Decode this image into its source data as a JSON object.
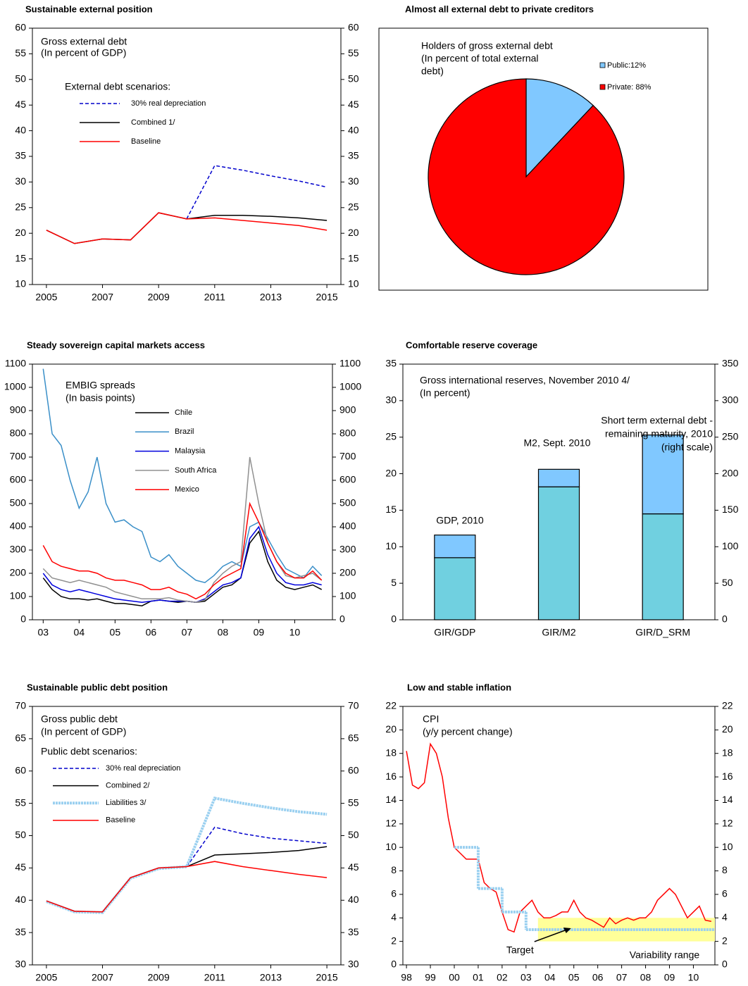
{
  "chart_data": [
    {
      "type": "line",
      "title": "Sustainable external position",
      "text": [
        "Gross external debt",
        "(In percent of GDP)"
      ],
      "legend_title": "External debt  scenarios:",
      "x": [
        2005,
        2006,
        2007,
        2008,
        2009,
        2010,
        2011,
        2012,
        2013,
        2014,
        2015
      ],
      "xlim": [
        2004.5,
        2015.5
      ],
      "xticks": [
        2005,
        2007,
        2009,
        2011,
        2013,
        2015
      ],
      "ylim": [
        10,
        60
      ],
      "yticks": [
        10,
        15,
        20,
        25,
        30,
        35,
        40,
        45,
        50,
        55,
        60
      ],
      "y2lim": [
        10,
        60
      ],
      "y2ticks": [
        10,
        15,
        20,
        25,
        30,
        35,
        40,
        45,
        50,
        55,
        60
      ],
      "series": [
        {
          "name": "30% real depreciation",
          "color": "#0000cc",
          "style": "dashed",
          "values": [
            null,
            null,
            null,
            null,
            null,
            22.8,
            33.2,
            32.3,
            31.2,
            30.2,
            29.0
          ]
        },
        {
          "name": "Combined 1/",
          "color": "#000000",
          "style": "solid",
          "values": [
            20.6,
            18.0,
            18.9,
            18.7,
            24.0,
            22.8,
            23.5,
            23.5,
            23.3,
            23.0,
            22.5
          ]
        },
        {
          "name": "Baseline",
          "color": "#ff0000",
          "style": "solid",
          "values": [
            20.6,
            18.0,
            18.9,
            18.7,
            24.0,
            22.8,
            23.0,
            22.5,
            22.0,
            21.5,
            20.6
          ]
        }
      ]
    },
    {
      "type": "pie",
      "title": "Almost all external  debt to private creditors",
      "text": [
        "Holders of gross external debt",
        "(In percent of total external",
        "debt)"
      ],
      "values": [
        12,
        88
      ],
      "value_labels": [
        "Public:12%",
        "Private: 88%"
      ],
      "colors": [
        "#80c8ff",
        "#ff0000"
      ]
    },
    {
      "type": "line",
      "title": "Steady sovereign capital markets access",
      "text": [
        "EMBIG spreads",
        "(In basis points)"
      ],
      "x": [
        2003,
        2003.25,
        2003.5,
        2003.75,
        2004,
        2004.25,
        2004.5,
        2004.75,
        2005,
        2005.25,
        2005.5,
        2005.75,
        2006,
        2006.25,
        2006.5,
        2006.75,
        2007,
        2007.25,
        2007.5,
        2007.75,
        2008,
        2008.25,
        2008.5,
        2008.75,
        2009,
        2009.25,
        2009.5,
        2009.75,
        2010,
        2010.25,
        2010.5,
        2010.75
      ],
      "xlim": [
        2002.7,
        2011.05
      ],
      "xticks": [
        {
          "value": 2003,
          "label": "03"
        },
        {
          "value": 2004,
          "label": "04"
        },
        {
          "value": 2005,
          "label": "05"
        },
        {
          "value": 2006,
          "label": "06"
        },
        {
          "value": 2007,
          "label": "07"
        },
        {
          "value": 2008,
          "label": "08"
        },
        {
          "value": 2009,
          "label": "09"
        },
        {
          "value": 2010,
          "label": "10"
        }
      ],
      "ylim": [
        0,
        1100
      ],
      "yticks": [
        0,
        100,
        200,
        300,
        400,
        500,
        600,
        700,
        800,
        900,
        1000,
        1100
      ],
      "y2lim": [
        0,
        1100
      ],
      "y2ticks": [
        0,
        100,
        200,
        300,
        400,
        500,
        600,
        700,
        800,
        900,
        1000,
        1100
      ],
      "series": [
        {
          "name": "Chile",
          "color": "#000000",
          "style": "solid",
          "values": [
            180,
            130,
            100,
            90,
            90,
            85,
            90,
            80,
            70,
            70,
            65,
            60,
            80,
            85,
            80,
            75,
            80,
            75,
            80,
            110,
            140,
            150,
            180,
            330,
            380,
            250,
            170,
            140,
            130,
            140,
            150,
            130
          ]
        },
        {
          "name": "Brazil",
          "color": "#3a8fc8",
          "style": "solid",
          "values": [
            1080,
            800,
            750,
            600,
            480,
            550,
            700,
            500,
            420,
            430,
            400,
            380,
            270,
            250,
            280,
            230,
            200,
            170,
            160,
            190,
            230,
            250,
            230,
            400,
            420,
            350,
            280,
            220,
            200,
            180,
            230,
            190
          ]
        },
        {
          "name": "Malaysia",
          "color": "#0000dd",
          "style": "solid",
          "values": [
            200,
            150,
            130,
            120,
            130,
            120,
            110,
            100,
            90,
            85,
            80,
            75,
            80,
            85,
            80,
            80,
            80,
            75,
            90,
            120,
            150,
            160,
            180,
            350,
            400,
            280,
            200,
            160,
            150,
            150,
            160,
            150
          ]
        },
        {
          "name": "South Africa",
          "color": "#909090",
          "style": "solid",
          "values": [
            220,
            180,
            170,
            160,
            170,
            160,
            150,
            140,
            120,
            110,
            100,
            90,
            90,
            90,
            95,
            85,
            80,
            75,
            85,
            160,
            200,
            230,
            250,
            700,
            500,
            330,
            250,
            190,
            180,
            190,
            200,
            170
          ]
        },
        {
          "name": "Mexico",
          "color": "#ff0000",
          "style": "solid",
          "values": [
            320,
            250,
            230,
            220,
            210,
            210,
            200,
            180,
            170,
            170,
            160,
            150,
            130,
            130,
            140,
            120,
            110,
            90,
            110,
            150,
            180,
            200,
            220,
            500,
            420,
            330,
            250,
            200,
            180,
            180,
            210,
            170
          ]
        }
      ]
    },
    {
      "type": "bar",
      "title": "Comfortable reserve coverage",
      "text": [
        "Gross international reserves, November 2010 4/",
        "(In percent)"
      ],
      "annotations": [
        "GDP, 2010",
        "M2, Sept. 2010",
        "Short term external debt -",
        "remaining maturity, 2010",
        "(right scale)"
      ],
      "categories": [
        "GIR/GDP",
        "GIR/M2",
        "GIR/D_SRM"
      ],
      "bar_axis": [
        "y",
        "y",
        "y2"
      ],
      "ylim": [
        0,
        35
      ],
      "yticks": [
        0,
        5,
        10,
        15,
        20,
        25,
        30,
        35
      ],
      "y2lim": [
        0,
        350
      ],
      "y2ticks": [
        0,
        50,
        100,
        150,
        200,
        250,
        300,
        350
      ],
      "series": [
        {
          "color": "#70d0e0",
          "values": [
            8.5,
            18.2,
            145
          ]
        },
        {
          "color": "#80c8ff",
          "values": [
            3.1,
            2.4,
            108
          ]
        }
      ]
    },
    {
      "type": "line",
      "title": "Sustainable public debt position",
      "text": [
        "Gross public debt",
        "(In percent of GDP)"
      ],
      "legend_title": "Public debt scenarios:",
      "x": [
        2005,
        2006,
        2007,
        2008,
        2009,
        2010,
        2011,
        2012,
        2013,
        2014,
        2015
      ],
      "xlim": [
        2004.5,
        2015.5
      ],
      "xticks": [
        2005,
        2007,
        2009,
        2011,
        2013,
        2015
      ],
      "ylim": [
        30,
        70
      ],
      "yticks": [
        30,
        35,
        40,
        45,
        50,
        55,
        60,
        65,
        70
      ],
      "y2lim": [
        30,
        70
      ],
      "y2ticks": [
        30,
        35,
        40,
        45,
        50,
        55,
        60,
        65,
        70
      ],
      "series": [
        {
          "name": "30% real depreciation",
          "color": "#0000cc",
          "style": "dashed",
          "values": [
            null,
            null,
            null,
            null,
            null,
            45.2,
            51.3,
            50.3,
            49.6,
            49.2,
            48.8
          ]
        },
        {
          "name": "Combined 2/",
          "color": "#000000",
          "style": "solid",
          "values": [
            39.9,
            38.3,
            38.2,
            43.5,
            45.0,
            45.2,
            47.0,
            47.2,
            47.4,
            47.7,
            48.3
          ]
        },
        {
          "name": "Liabilities 3/",
          "color": "#9ad0f0",
          "style": "dotted",
          "values": [
            39.8,
            38.2,
            38.1,
            43.4,
            44.9,
            45.2,
            55.8,
            55.0,
            54.3,
            53.7,
            53.3
          ]
        },
        {
          "name": "Baseline",
          "color": "#ff0000",
          "style": "solid",
          "values": [
            39.9,
            38.3,
            38.2,
            43.5,
            45.0,
            45.2,
            46.0,
            45.2,
            44.6,
            44.0,
            43.5
          ]
        }
      ]
    },
    {
      "type": "line",
      "title": "Low and stable inflation",
      "text": [
        "CPI",
        "(y/y percent change)"
      ],
      "x": [
        1998,
        1998.25,
        1998.5,
        1998.75,
        1999,
        1999.25,
        1999.5,
        1999.75,
        2000,
        2000.25,
        2000.5,
        2000.75,
        2001,
        2001.25,
        2001.5,
        2001.75,
        2002,
        2002.25,
        2002.5,
        2002.75,
        2003,
        2003.25,
        2003.5,
        2003.75,
        2004,
        2004.25,
        2004.5,
        2004.75,
        2005,
        2005.25,
        2005.5,
        2005.75,
        2006,
        2006.25,
        2006.5,
        2006.75,
        2007,
        2007.25,
        2007.5,
        2007.75,
        2008,
        2008.25,
        2008.5,
        2008.75,
        2009,
        2009.25,
        2009.5,
        2009.75,
        2010,
        2010.25,
        2010.5,
        2010.75
      ],
      "xlim": [
        1997.85,
        2010.9
      ],
      "xticks": [
        {
          "value": 1998,
          "label": "98"
        },
        {
          "value": 1999,
          "label": "99"
        },
        {
          "value": 2000,
          "label": "00"
        },
        {
          "value": 2001,
          "label": "01"
        },
        {
          "value": 2002,
          "label": "02"
        },
        {
          "value": 2003,
          "label": "03"
        },
        {
          "value": 2004,
          "label": "04"
        },
        {
          "value": 2005,
          "label": "05"
        },
        {
          "value": 2006,
          "label": "06"
        },
        {
          "value": 2007,
          "label": "07"
        },
        {
          "value": 2008,
          "label": "08"
        },
        {
          "value": 2009,
          "label": "09"
        },
        {
          "value": 2010,
          "label": "10"
        }
      ],
      "ylim": [
        0,
        22
      ],
      "yticks": [
        0,
        2,
        4,
        6,
        8,
        10,
        12,
        14,
        16,
        18,
        20,
        22
      ],
      "y2lim": [
        0,
        22
      ],
      "y2ticks": [
        0,
        2,
        4,
        6,
        8,
        10,
        12,
        14,
        16,
        18,
        20,
        22
      ],
      "band": {
        "label": "Variability range",
        "color": "#ffff99",
        "x": [
          2003.5,
          2010.9
        ],
        "y": [
          2,
          4
        ]
      },
      "target": {
        "name": "Target",
        "color": "#9ad0f0",
        "x": [
          2000,
          2001,
          2002,
          2003
        ],
        "values": [
          10,
          6.5,
          4.5,
          3
        ]
      },
      "series": [
        {
          "color": "#ff0000",
          "style": "solid",
          "values": [
            18.2,
            15.3,
            15.0,
            15.5,
            18.8,
            18.0,
            16.0,
            12.5,
            10.0,
            9.5,
            9.0,
            9.0,
            9.0,
            7.0,
            6.5,
            6.2,
            4.5,
            3.0,
            2.8,
            4.5,
            5.0,
            5.5,
            4.5,
            4.0,
            4.0,
            4.2,
            4.5,
            4.5,
            5.5,
            4.5,
            4.0,
            3.8,
            3.5,
            3.2,
            4.0,
            3.5,
            3.8,
            4.0,
            3.8,
            4.0,
            4.0,
            4.5,
            5.5,
            6.0,
            6.5,
            6.0,
            5.0,
            4.0,
            4.5,
            5.0,
            3.8,
            3.7
          ]
        }
      ]
    }
  ]
}
